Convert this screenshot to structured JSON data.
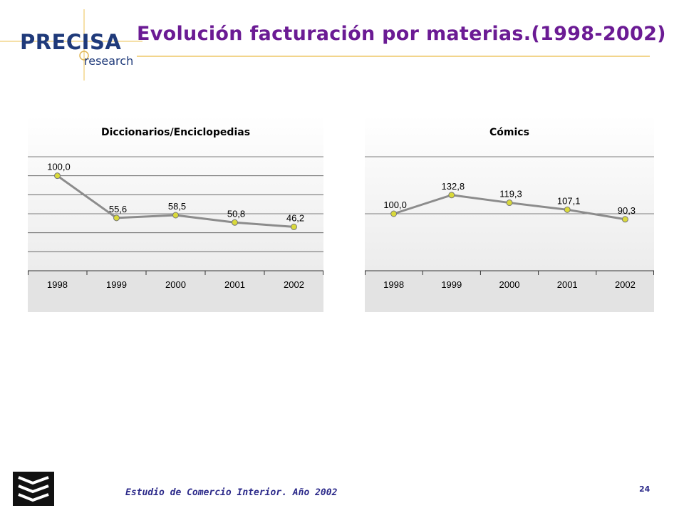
{
  "header": {
    "logo_brand": "PRECISA",
    "logo_sub": "research",
    "title": "Evolución facturación por materias.(1998-2002)"
  },
  "footer": {
    "text": "Estudio de Comercio Interior. Año 2002",
    "page_number": "24"
  },
  "colors": {
    "title": "#6b1b94",
    "brand": "#1f3a7a",
    "line": "#8c8c8c",
    "marker_fill": "#d9d93a",
    "plot_bg": "#ececec"
  },
  "chart_data": [
    {
      "type": "line",
      "title": "Diccionarios/Enciclopedias",
      "categories": [
        "1998",
        "1999",
        "2000",
        "2001",
        "2002"
      ],
      "values": [
        100.0,
        55.6,
        58.5,
        50.8,
        46.2
      ],
      "data_labels": [
        "100,0",
        "55,6",
        "58,5",
        "50,8",
        "46,2"
      ],
      "ylim": [
        0,
        120
      ],
      "grid": true,
      "legend": "none"
    },
    {
      "type": "line",
      "title": "Cómics",
      "categories": [
        "1998",
        "1999",
        "2000",
        "2001",
        "2002"
      ],
      "values": [
        100.0,
        132.8,
        119.3,
        107.1,
        90.3
      ],
      "data_labels": [
        "100,0",
        "132,8",
        "119,3",
        "107,1",
        "90,3"
      ],
      "ylim": [
        0,
        200
      ],
      "grid": true,
      "legend": "none"
    }
  ]
}
